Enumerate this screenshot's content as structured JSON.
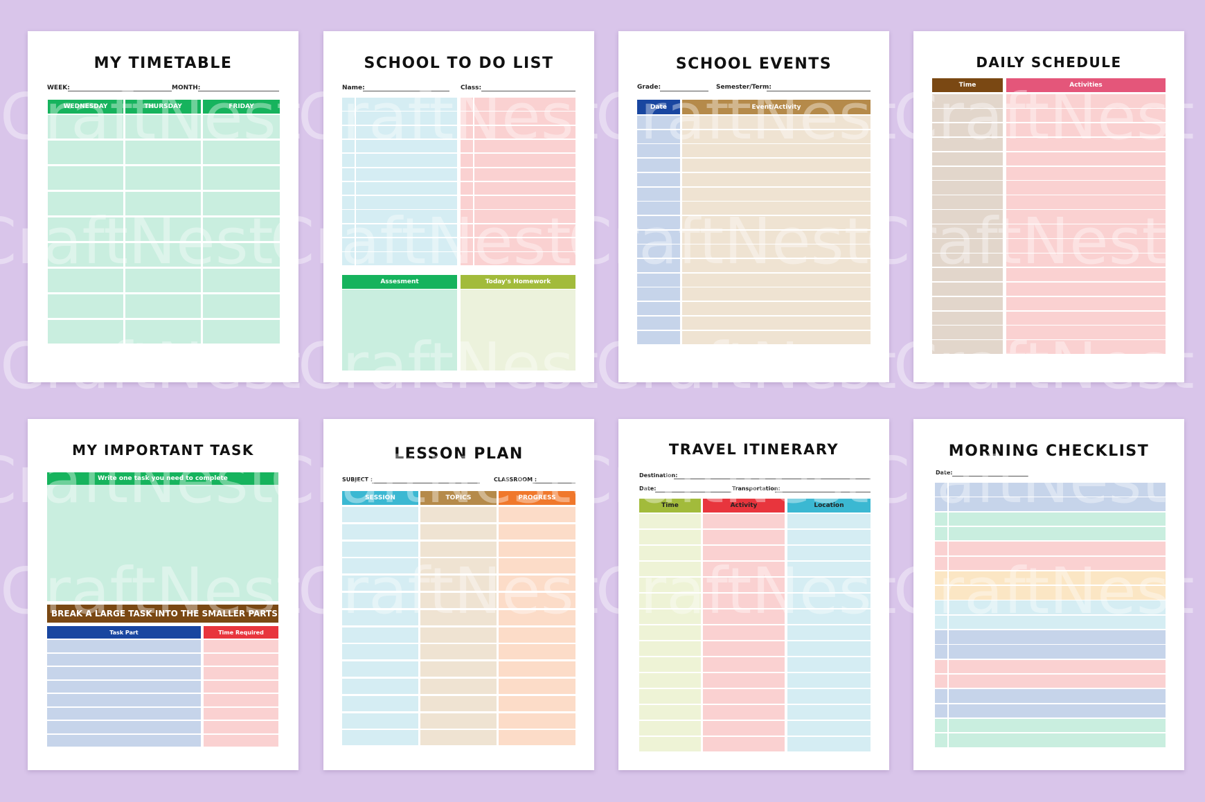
{
  "watermark": "CraftNest",
  "colors": {
    "background": "#d9c5ea",
    "green_header": "#16b35d",
    "green_cell": "#c9eedf",
    "blue_light": "#d5edf3",
    "pink": "#fad1d1",
    "navy": "#1946a0",
    "brown": "#b58a4a",
    "tan": "#efe3d2",
    "periwinkle": "#c6d4ea",
    "dark_pink": "#e4567a",
    "olive": "#a2bb3b",
    "red": "#e8353d",
    "cyan": "#3bb8d2",
    "orange": "#f0782c",
    "dark_brown": "#7a4813"
  },
  "timetable": {
    "title": "MY TIMETABLE",
    "week_label": "WEEK:",
    "month_label": "MONTH:",
    "columns": [
      "WEDNESDAY",
      "THURSDAY",
      "FRIDAY"
    ]
  },
  "todo": {
    "title": "SCHOOL TO DO LIST",
    "name_label": "Name:",
    "class_label": "Class:",
    "assessment_label": "Assesment",
    "homework_label": "Today's Homework"
  },
  "events": {
    "title": "SCHOOL EVENTS",
    "grade_label": "Grade:",
    "semester_label": "Semester/Term:",
    "date_header": "Date",
    "event_header": "Event/Activity"
  },
  "daily": {
    "title": "DAILY SCHEDULE",
    "time_header": "Time",
    "activities_header": "Activities"
  },
  "important": {
    "title": "MY IMPORTANT TASK",
    "task_header": "Write one task you need to complete",
    "break_header": "BREAK A LARGE TASK INTO THE SMALLER PARTS",
    "part_header": "Task Part",
    "time_header": "Time Required"
  },
  "lesson": {
    "title": "LESSON PLAN",
    "subject_label": "SUBJECT :",
    "classroom_label": "CLASSROOM :",
    "columns": [
      "SESSION",
      "TOPICS",
      "PROGRESS"
    ]
  },
  "travel": {
    "title": "TRAVEL ITINERARY",
    "destination_label": "Destination:",
    "date_label": "Date:",
    "transportation_label": "Transportation:",
    "columns": [
      "Time",
      "Activity",
      "Location"
    ]
  },
  "morning": {
    "title": "MORNING CHECKLIST",
    "date_label": "Date:"
  }
}
